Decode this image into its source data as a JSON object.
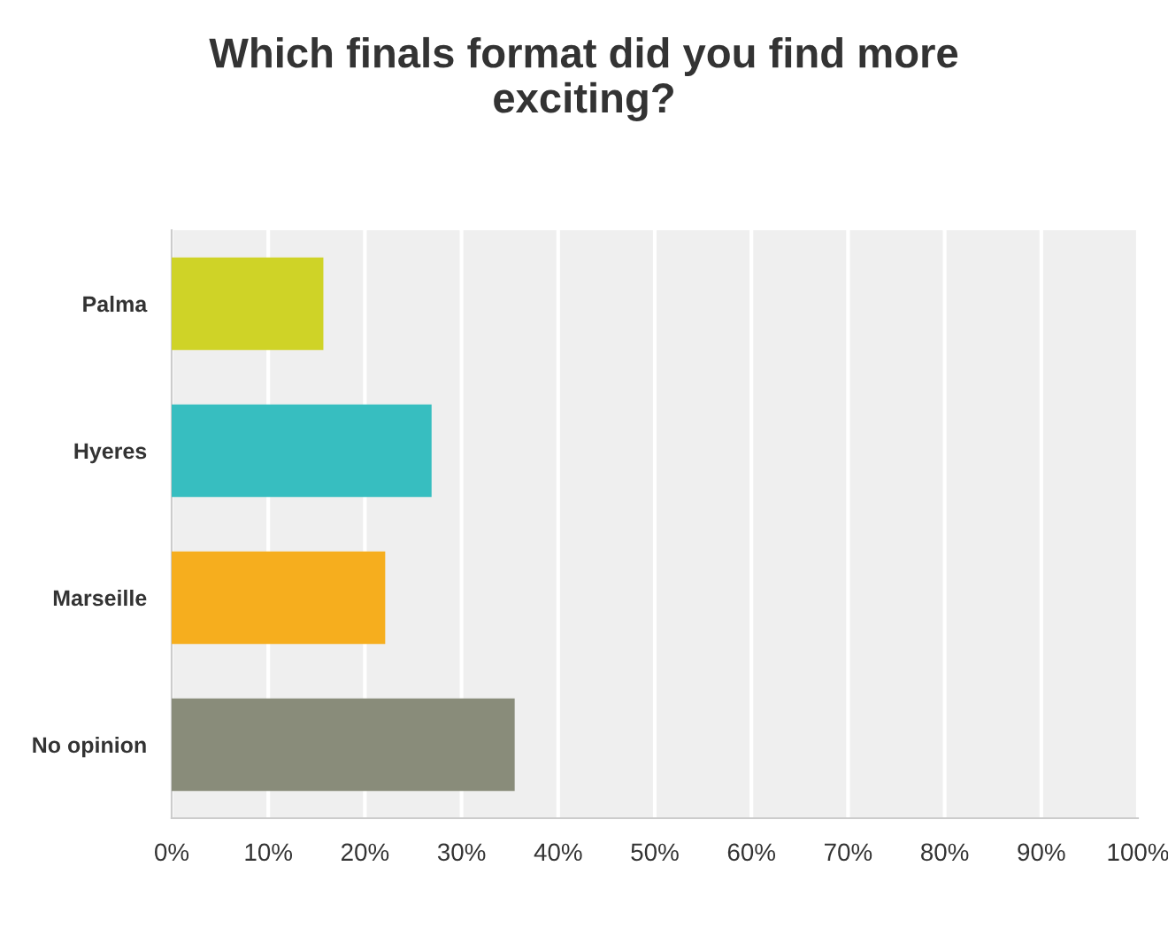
{
  "chart_data": {
    "type": "bar",
    "orientation": "horizontal",
    "title": "Which finals format did you find more\nexciting?",
    "categories": [
      "Palma",
      "Hyeres",
      "Marseille",
      "No opinion"
    ],
    "values": [
      15.7,
      26.9,
      22.1,
      35.5
    ],
    "colors": [
      "#cfd327",
      "#37bec0",
      "#f6ae1e",
      "#898c7a"
    ],
    "xlim": [
      0,
      100
    ],
    "xticks": [
      {
        "value": 0,
        "label": "0%"
      },
      {
        "value": 10,
        "label": "10%"
      },
      {
        "value": 20,
        "label": "20%"
      },
      {
        "value": 30,
        "label": "30%"
      },
      {
        "value": 40,
        "label": "40%"
      },
      {
        "value": 50,
        "label": "50%"
      },
      {
        "value": 60,
        "label": "60%"
      },
      {
        "value": 70,
        "label": "70%"
      },
      {
        "value": 80,
        "label": "80%"
      },
      {
        "value": 90,
        "label": "90%"
      },
      {
        "value": 100,
        "label": "100%"
      }
    ],
    "grid": "x"
  }
}
